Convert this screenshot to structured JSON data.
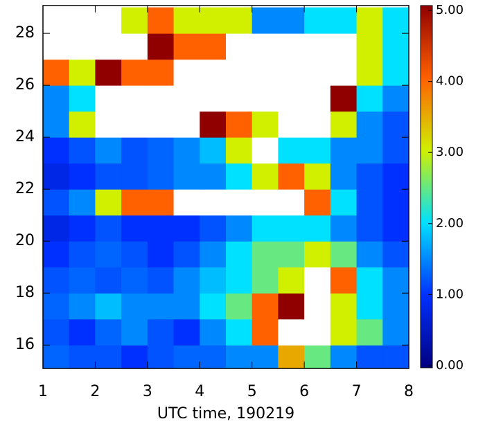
{
  "chart_data": {
    "type": "heatmap",
    "x_label": "UTC time, 190219",
    "x": [
      1.25,
      1.75,
      2.25,
      2.75,
      3.25,
      3.75,
      4.25,
      4.75,
      5.25,
      5.75,
      6.25,
      6.75,
      7.25,
      7.75
    ],
    "y": [
      15.5,
      16.5,
      17.5,
      18.5,
      19.5,
      20.5,
      21.5,
      22.5,
      23.5,
      24.5,
      25.5,
      26.5,
      27.5,
      28.5
    ],
    "z": [
      [
        1.3,
        1.2,
        1.2,
        1.0,
        1.2,
        1.3,
        1.3,
        1.5,
        1.5,
        3.5,
        2.5,
        1.5,
        1.2,
        1.2
      ],
      [
        1.2,
        1.0,
        1.3,
        1.5,
        1.2,
        1.0,
        1.5,
        2.0,
        4,
        6,
        6,
        3,
        2.5,
        1.5
      ],
      [
        1.3,
        1.5,
        1.8,
        1.5,
        1.5,
        1.5,
        2,
        2.5,
        4,
        5,
        6,
        3,
        2,
        1.5
      ],
      [
        1.2,
        1.3,
        1.2,
        1.3,
        1.2,
        1.5,
        1.8,
        2,
        2.5,
        3,
        6,
        4,
        2,
        1.5
      ],
      [
        1.0,
        1.2,
        1.3,
        1.2,
        1.0,
        1.2,
        1.5,
        2,
        2.5,
        2.5,
        3,
        2.5,
        1.5,
        1.2
      ],
      [
        0.8,
        1.0,
        1.2,
        1.0,
        1.0,
        1.0,
        1.2,
        1.5,
        2,
        2,
        2,
        1.5,
        1.2,
        1.0
      ],
      [
        1.2,
        1.5,
        3,
        4,
        4,
        6,
        6,
        6,
        6,
        6,
        4,
        2,
        1.2,
        1.0
      ],
      [
        0.8,
        1.0,
        1.2,
        1.2,
        1.3,
        1.5,
        1.5,
        2,
        3,
        4,
        3,
        1.5,
        1.2,
        1.0
      ],
      [
        1.0,
        1.2,
        1.5,
        1.2,
        1.3,
        1.5,
        1.8,
        3,
        6,
        2,
        2,
        1.5,
        1.5,
        1.2
      ],
      [
        1.5,
        3,
        6,
        6,
        6,
        6,
        5,
        4,
        3,
        6,
        6,
        3,
        1.5,
        1.2
      ],
      [
        1.5,
        2,
        6,
        6,
        6,
        6,
        6,
        6,
        6,
        6,
        6,
        5,
        2,
        1.5
      ],
      [
        4,
        3,
        5,
        4,
        4,
        6,
        6,
        6,
        6,
        6,
        6,
        6,
        3,
        2
      ],
      [
        6,
        6,
        6,
        6,
        5,
        4,
        4,
        6,
        6,
        6,
        6,
        6,
        3,
        2
      ],
      [
        6,
        6,
        6,
        3,
        4,
        3,
        3,
        3,
        1.5,
        1.5,
        2,
        2,
        3,
        2
      ]
    ],
    "xlim": [
      1,
      8
    ],
    "xticks": [
      1,
      2,
      3,
      4,
      5,
      6,
      7,
      8
    ],
    "ylim": [
      15.1,
      29.07
    ],
    "yticks": [
      16,
      18,
      20,
      22,
      24,
      26,
      28
    ],
    "clim": [
      0,
      5
    ],
    "cticks": [
      {
        "value": 0,
        "label": "0.00"
      },
      {
        "value": 1,
        "label": "1.00"
      },
      {
        "value": 2,
        "label": "2.00"
      },
      {
        "value": 3,
        "label": "3.00"
      },
      {
        "value": 4,
        "label": "4.00"
      },
      {
        "value": 5,
        "label": "5.00"
      }
    ],
    "colors": [
      "#000080",
      "#0030ff",
      "#00e0ff",
      "#d0f000",
      "#ff6000",
      "#900000"
    ],
    "over_color": "#ffffff"
  }
}
